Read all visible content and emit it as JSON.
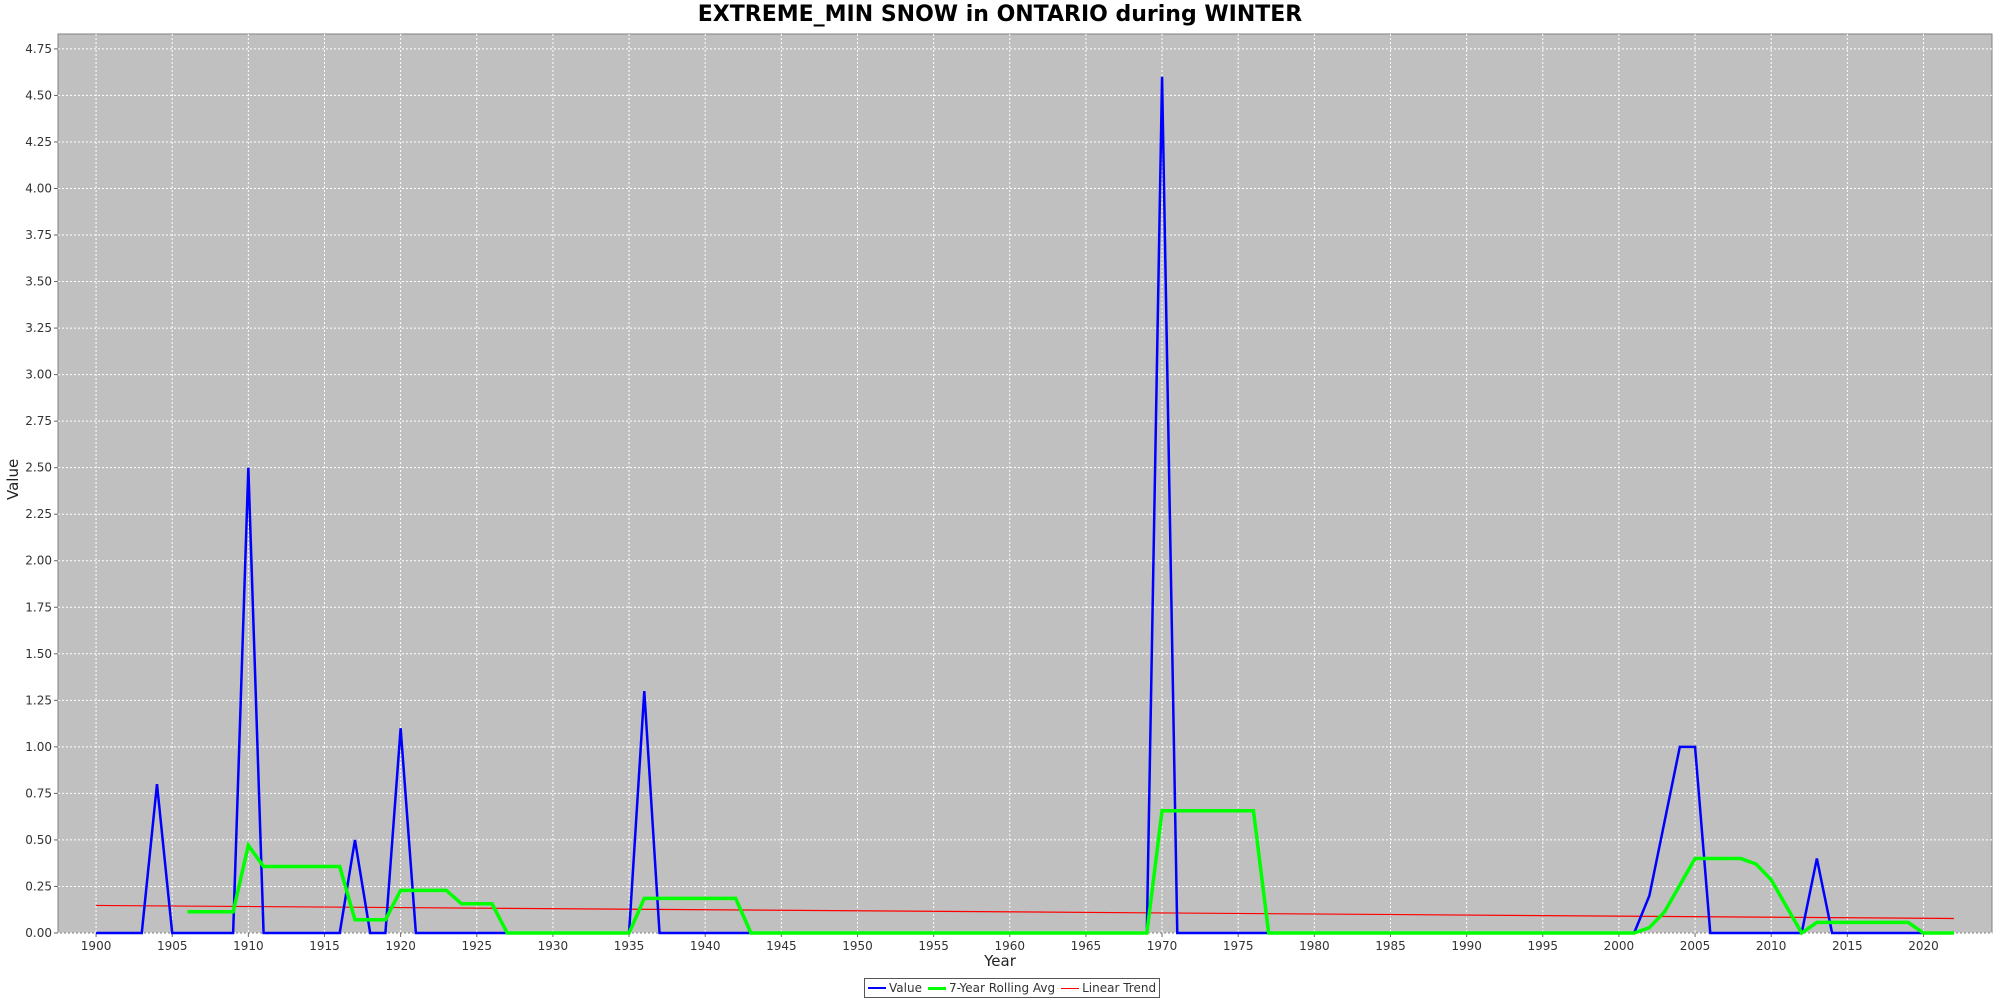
{
  "chart_data": {
    "type": "line",
    "title": "EXTREME_MIN SNOW in ONTARIO during WINTER",
    "xlabel": "Year",
    "ylabel": "Value",
    "xlim": [
      1897.5,
      2024.5
    ],
    "ylim": [
      0,
      4.83
    ],
    "x_ticks": [
      1900,
      1905,
      1910,
      1915,
      1920,
      1925,
      1930,
      1935,
      1940,
      1945,
      1950,
      1955,
      1960,
      1965,
      1970,
      1975,
      1980,
      1985,
      1990,
      1995,
      2000,
      2005,
      2010,
      2015,
      2020
    ],
    "y_ticks": [
      "0.00",
      "0.25",
      "0.50",
      "0.75",
      "1.00",
      "1.25",
      "1.50",
      "1.75",
      "2.00",
      "2.25",
      "2.50",
      "2.75",
      "3.00",
      "3.25",
      "3.50",
      "3.75",
      "4.00",
      "4.25",
      "4.50",
      "4.75"
    ],
    "grid": true,
    "legend_position": "bottom-center",
    "colors": {
      "value": "#0000ff",
      "rolling": "#00ff00",
      "trend": "#ff0000",
      "plot_bg": "#c0c0c0",
      "grid": "#ffffff"
    },
    "series": [
      {
        "name": "Value",
        "color": "#0000ff",
        "x": [
          1900,
          1901,
          1902,
          1903,
          1904,
          1905,
          1906,
          1907,
          1908,
          1909,
          1910,
          1911,
          1912,
          1913,
          1914,
          1915,
          1916,
          1917,
          1918,
          1919,
          1920,
          1921,
          1922,
          1923,
          1924,
          1925,
          1926,
          1927,
          1928,
          1929,
          1930,
          1931,
          1932,
          1933,
          1934,
          1935,
          1936,
          1937,
          1938,
          1939,
          1940,
          1941,
          1942,
          1943,
          1944,
          1945,
          1946,
          1947,
          1948,
          1949,
          1950,
          1951,
          1952,
          1953,
          1954,
          1955,
          1956,
          1957,
          1958,
          1959,
          1960,
          1961,
          1962,
          1963,
          1964,
          1965,
          1966,
          1967,
          1968,
          1969,
          1970,
          1971,
          1972,
          1973,
          1974,
          1975,
          1976,
          1977,
          1978,
          1979,
          1980,
          1981,
          1982,
          1983,
          1984,
          1985,
          1986,
          1987,
          1988,
          1989,
          1990,
          1991,
          1992,
          1993,
          1994,
          1995,
          1996,
          1997,
          1998,
          1999,
          2000,
          2001,
          2002,
          2003,
          2004,
          2005,
          2006,
          2007,
          2008,
          2009,
          2010,
          2011,
          2012,
          2013,
          2014,
          2015,
          2016,
          2017,
          2018,
          2019,
          2020,
          2021,
          2022
        ],
        "values": [
          0,
          0,
          0,
          0,
          0.8,
          0,
          0,
          0,
          0,
          0,
          2.5,
          0,
          0,
          0,
          0,
          0,
          0,
          0.5,
          0,
          0,
          1.1,
          0,
          0,
          0,
          0,
          0,
          0,
          0,
          0,
          0,
          0,
          0,
          0,
          0,
          0,
          0,
          1.3,
          0,
          0,
          0,
          0,
          0,
          0,
          0,
          0,
          0,
          0,
          0,
          0,
          0,
          0,
          0,
          0,
          0,
          0,
          0,
          0,
          0,
          0,
          0,
          0,
          0,
          0,
          0,
          0,
          0,
          0,
          0,
          0,
          0,
          4.6,
          0,
          0,
          0,
          0,
          0,
          0,
          0,
          0,
          0,
          0,
          0,
          0,
          0,
          0,
          0,
          0,
          0,
          0,
          0,
          0,
          0,
          0,
          0,
          0,
          0,
          0,
          0,
          0,
          0,
          0,
          0,
          0.2,
          0.6,
          1.0,
          1.0,
          0,
          0,
          0,
          0,
          0,
          0,
          0,
          0.4,
          0,
          0,
          0,
          0,
          0,
          0,
          0,
          0,
          0
        ]
      },
      {
        "name": "7-Year Rolling Avg",
        "color": "#00ff00",
        "x": [
          1906,
          1907,
          1908,
          1909,
          1910,
          1911,
          1912,
          1913,
          1914,
          1915,
          1916,
          1917,
          1918,
          1919,
          1920,
          1921,
          1922,
          1923,
          1924,
          1925,
          1926,
          1927,
          1928,
          1929,
          1930,
          1931,
          1932,
          1933,
          1934,
          1935,
          1936,
          1937,
          1938,
          1939,
          1940,
          1941,
          1942,
          1943,
          1944,
          1945,
          1946,
          1947,
          1948,
          1949,
          1950,
          1951,
          1952,
          1953,
          1954,
          1955,
          1956,
          1957,
          1958,
          1959,
          1960,
          1961,
          1962,
          1963,
          1964,
          1965,
          1966,
          1967,
          1968,
          1969,
          1970,
          1971,
          1972,
          1973,
          1974,
          1975,
          1976,
          1977,
          1978,
          1979,
          1980,
          1981,
          1982,
          1983,
          1984,
          1985,
          1986,
          1987,
          1988,
          1989,
          1990,
          1991,
          1992,
          1993,
          1994,
          1995,
          1996,
          1997,
          1998,
          1999,
          2000,
          2001,
          2002,
          2003,
          2004,
          2005,
          2006,
          2007,
          2008,
          2009,
          2010,
          2011,
          2012,
          2013,
          2014,
          2015,
          2016,
          2017,
          2018,
          2019,
          2020,
          2021,
          2022
        ],
        "values": [
          0.114,
          0.114,
          0.114,
          0.114,
          0.471,
          0.357,
          0.357,
          0.357,
          0.357,
          0.357,
          0.357,
          0.071,
          0.071,
          0.071,
          0.229,
          0.229,
          0.229,
          0.229,
          0.157,
          0.157,
          0.157,
          0,
          0,
          0,
          0,
          0,
          0,
          0,
          0,
          0,
          0.186,
          0.186,
          0.186,
          0.186,
          0.186,
          0.186,
          0.186,
          0,
          0,
          0,
          0,
          0,
          0,
          0,
          0,
          0,
          0,
          0,
          0,
          0,
          0,
          0,
          0,
          0,
          0,
          0,
          0,
          0,
          0,
          0,
          0,
          0,
          0,
          0,
          0.657,
          0.657,
          0.657,
          0.657,
          0.657,
          0.657,
          0.657,
          0,
          0,
          0,
          0,
          0,
          0,
          0,
          0,
          0,
          0,
          0,
          0,
          0,
          0,
          0,
          0,
          0,
          0,
          0,
          0,
          0,
          0,
          0,
          0,
          0,
          0.029,
          0.114,
          0.257,
          0.4,
          0.4,
          0.4,
          0.4,
          0.371,
          0.286,
          0.143,
          0,
          0.057,
          0.057,
          0.057,
          0.057,
          0.057,
          0.057,
          0.057,
          0,
          0,
          0
        ]
      },
      {
        "name": "Linear Trend",
        "color": "#ff0000",
        "x": [
          1900,
          2022
        ],
        "values": [
          0.148,
          0.078
        ]
      }
    ]
  }
}
